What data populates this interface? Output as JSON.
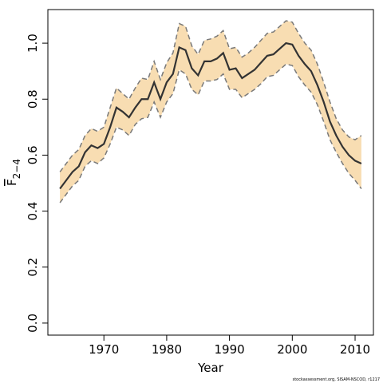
{
  "chart_data": {
    "type": "line",
    "xlabel": "Year",
    "ylabel": {
      "base": "F",
      "sub": "2−4"
    },
    "footnote": "stockassessment.org, SISAM-NSCOD, r1217",
    "x": [
      1963,
      1964,
      1965,
      1966,
      1967,
      1968,
      1969,
      1970,
      1971,
      1972,
      1973,
      1974,
      1975,
      1976,
      1977,
      1978,
      1979,
      1980,
      1981,
      1982,
      1983,
      1984,
      1985,
      1986,
      1987,
      1988,
      1989,
      1990,
      1991,
      1992,
      1993,
      1994,
      1995,
      1996,
      1997,
      1998,
      1999,
      2000,
      2001,
      2002,
      2003,
      2004,
      2005,
      2006,
      2007,
      2008,
      2009,
      2010,
      2011
    ],
    "values": [
      0.48,
      0.51,
      0.54,
      0.56,
      0.61,
      0.635,
      0.625,
      0.64,
      0.7,
      0.77,
      0.755,
      0.735,
      0.77,
      0.8,
      0.8,
      0.86,
      0.8,
      0.86,
      0.89,
      0.985,
      0.975,
      0.91,
      0.885,
      0.935,
      0.935,
      0.945,
      0.965,
      0.905,
      0.91,
      0.875,
      0.89,
      0.905,
      0.93,
      0.955,
      0.96,
      0.98,
      1.0,
      0.995,
      0.955,
      0.925,
      0.9,
      0.85,
      0.79,
      0.72,
      0.67,
      0.63,
      0.6,
      0.58,
      0.57
    ],
    "upper": [
      0.54,
      0.57,
      0.6,
      0.62,
      0.67,
      0.695,
      0.685,
      0.7,
      0.77,
      0.84,
      0.82,
      0.8,
      0.84,
      0.875,
      0.87,
      0.935,
      0.87,
      0.93,
      0.965,
      1.07,
      1.06,
      0.99,
      0.96,
      1.01,
      1.015,
      1.025,
      1.045,
      0.98,
      0.985,
      0.95,
      0.965,
      0.985,
      1.01,
      1.035,
      1.04,
      1.06,
      1.08,
      1.075,
      1.035,
      1.0,
      0.975,
      0.925,
      0.86,
      0.79,
      0.73,
      0.69,
      0.665,
      0.655,
      0.67
    ],
    "lower": [
      0.43,
      0.46,
      0.49,
      0.51,
      0.56,
      0.58,
      0.57,
      0.59,
      0.64,
      0.7,
      0.69,
      0.67,
      0.71,
      0.73,
      0.735,
      0.79,
      0.735,
      0.79,
      0.82,
      0.905,
      0.89,
      0.835,
      0.815,
      0.865,
      0.865,
      0.87,
      0.89,
      0.835,
      0.835,
      0.805,
      0.82,
      0.835,
      0.855,
      0.88,
      0.885,
      0.905,
      0.925,
      0.92,
      0.88,
      0.85,
      0.825,
      0.78,
      0.72,
      0.655,
      0.61,
      0.57,
      0.535,
      0.51,
      0.48
    ],
    "color": "#333333",
    "band_color": "#f8ddb2",
    "bound_color": "#7a7a7a",
    "xlim": [
      1961.08,
      2012.92
    ],
    "xticks": [
      1970,
      1980,
      1990,
      2000,
      2010
    ],
    "ylim": [
      -0.043,
      1.12
    ],
    "yticks": [
      {
        "value": 0,
        "label": "0.0"
      },
      0.2,
      0.4,
      0.6,
      0.8,
      {
        "value": 1,
        "label": "1.0"
      }
    ]
  }
}
